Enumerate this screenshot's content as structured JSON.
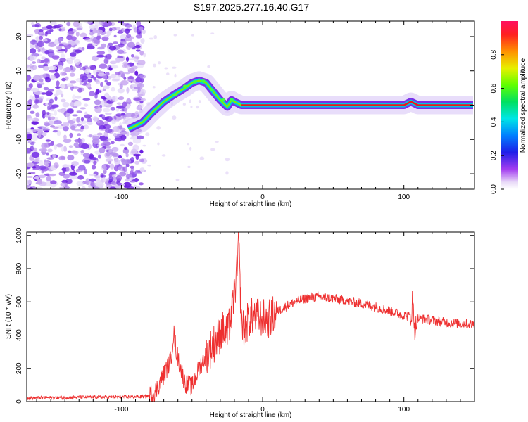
{
  "title": "S197.2025.277.16.40.G17",
  "chart_data": [
    {
      "type": "heatmap",
      "description_of_content": "spectrogram",
      "xlabel": "Height of straight line (km)",
      "ylabel": "Frequency (Hz)",
      "xlim": [
        -167,
        150
      ],
      "ylim": [
        -24.5,
        24.5
      ],
      "xticks": [
        -100,
        0,
        100
      ],
      "yticks": [
        -20,
        -10,
        0,
        10,
        20
      ],
      "colorbar": {
        "label": "Normalized spectral amplitude",
        "range": [
          0,
          1
        ],
        "ticks": [
          0.0,
          0.2,
          0.4,
          0.6,
          0.8
        ]
      },
      "ridge": {
        "x": [
          -95,
          -85,
          -78,
          -70,
          -63,
          -55,
          -50,
          -45,
          -40,
          -35,
          -30,
          -25,
          -22,
          -20,
          -15,
          0,
          20,
          50,
          100,
          105,
          110,
          149
        ],
        "y": [
          -7,
          -5,
          -2,
          1,
          3,
          5,
          6.5,
          7.2,
          6.5,
          4,
          1.5,
          -0.5,
          1.5,
          1,
          0,
          0,
          0,
          0,
          0,
          1,
          0,
          0
        ]
      }
    },
    {
      "type": "line",
      "xlabel": "Height of straight line (km)",
      "ylabel": "SNR (10 * v/v)",
      "xlim": [
        -167,
        150
      ],
      "ylim": [
        0,
        1020
      ],
      "xticks": [
        -100,
        0,
        100
      ],
      "yticks": [
        0,
        200,
        400,
        600,
        800,
        1000
      ],
      "series": [
        {
          "name": "SNR",
          "color": "#ee3030",
          "x": [
            -167,
            -140,
            -100,
            -82,
            -76,
            -70,
            -65,
            -63,
            -61,
            -58,
            -55,
            -50,
            -45,
            -40,
            -36,
            -32,
            -28,
            -25,
            -22,
            -20,
            -18,
            -17,
            -16,
            -15,
            -13,
            -10,
            -5,
            0,
            5,
            10,
            20,
            30,
            40,
            50,
            60,
            70,
            80,
            90,
            100,
            105,
            106,
            108,
            110,
            120,
            130,
            149
          ],
          "y": [
            22,
            25,
            28,
            30,
            60,
            160,
            250,
            420,
            300,
            200,
            110,
            90,
            200,
            280,
            330,
            380,
            430,
            400,
            520,
            650,
            780,
            1000,
            700,
            480,
            420,
            500,
            520,
            500,
            500,
            540,
            590,
            620,
            630,
            620,
            605,
            590,
            570,
            545,
            520,
            510,
            600,
            430,
            500,
            490,
            475,
            465
          ]
        }
      ]
    }
  ]
}
